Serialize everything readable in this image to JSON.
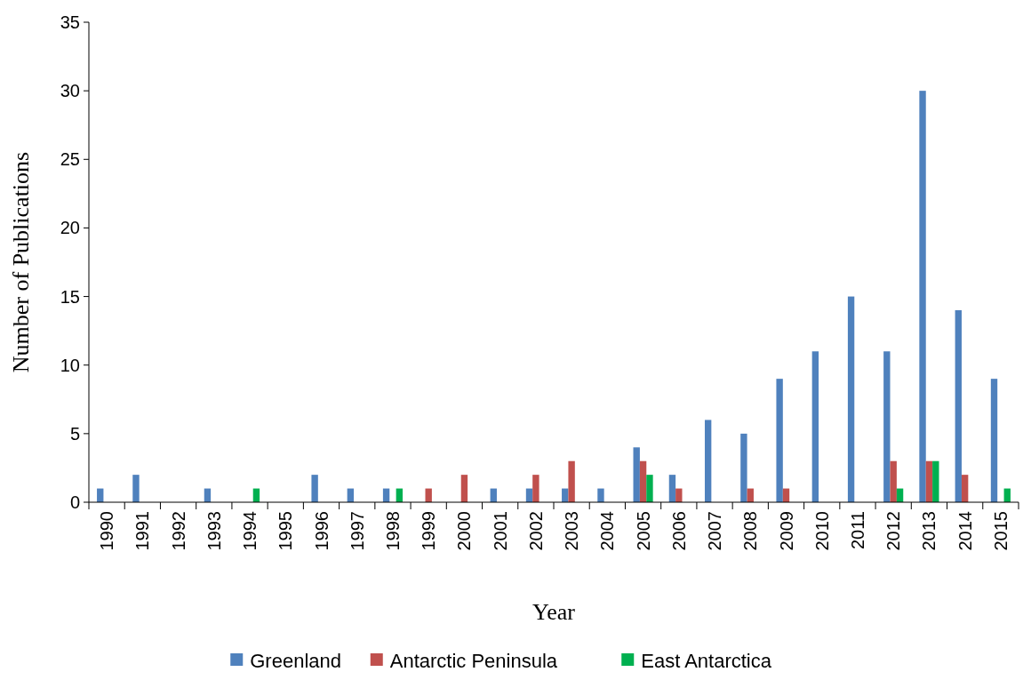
{
  "chart_data": {
    "type": "bar",
    "xlabel": "Year",
    "ylabel": "Number of Publications",
    "categories": [
      "1990",
      "1991",
      "1992",
      "1993",
      "1994",
      "1995",
      "1996",
      "1997",
      "1998",
      "1999",
      "2000",
      "2001",
      "2002",
      "2003",
      "2004",
      "2005",
      "2006",
      "2007",
      "2008",
      "2009",
      "2010",
      "2011",
      "2012",
      "2013",
      "2014",
      "2015"
    ],
    "series": [
      {
        "name": "Greenland",
        "color": "#4f81bd",
        "values": [
          1,
          2,
          0,
          1,
          0,
          0,
          2,
          1,
          1,
          0,
          0,
          1,
          1,
          1,
          1,
          4,
          2,
          6,
          5,
          9,
          11,
          15,
          11,
          30,
          14,
          9
        ]
      },
      {
        "name": "Antarctic Peninsula",
        "color": "#c0504d",
        "values": [
          0,
          0,
          0,
          0,
          0,
          0,
          0,
          0,
          0,
          1,
          2,
          0,
          2,
          3,
          0,
          3,
          1,
          0,
          1,
          1,
          0,
          0,
          3,
          3,
          2,
          0
        ]
      },
      {
        "name": "East Antarctica",
        "color": "#00b050",
        "values": [
          0,
          0,
          0,
          0,
          1,
          0,
          0,
          0,
          1,
          0,
          0,
          0,
          0,
          0,
          0,
          2,
          0,
          0,
          0,
          0,
          0,
          0,
          1,
          3,
          0,
          1
        ]
      }
    ],
    "ylim": [
      0,
      35
    ],
    "yticks": [
      0,
      5,
      10,
      15,
      20,
      25,
      30,
      35
    ],
    "grid": false,
    "legend": "bottom"
  }
}
